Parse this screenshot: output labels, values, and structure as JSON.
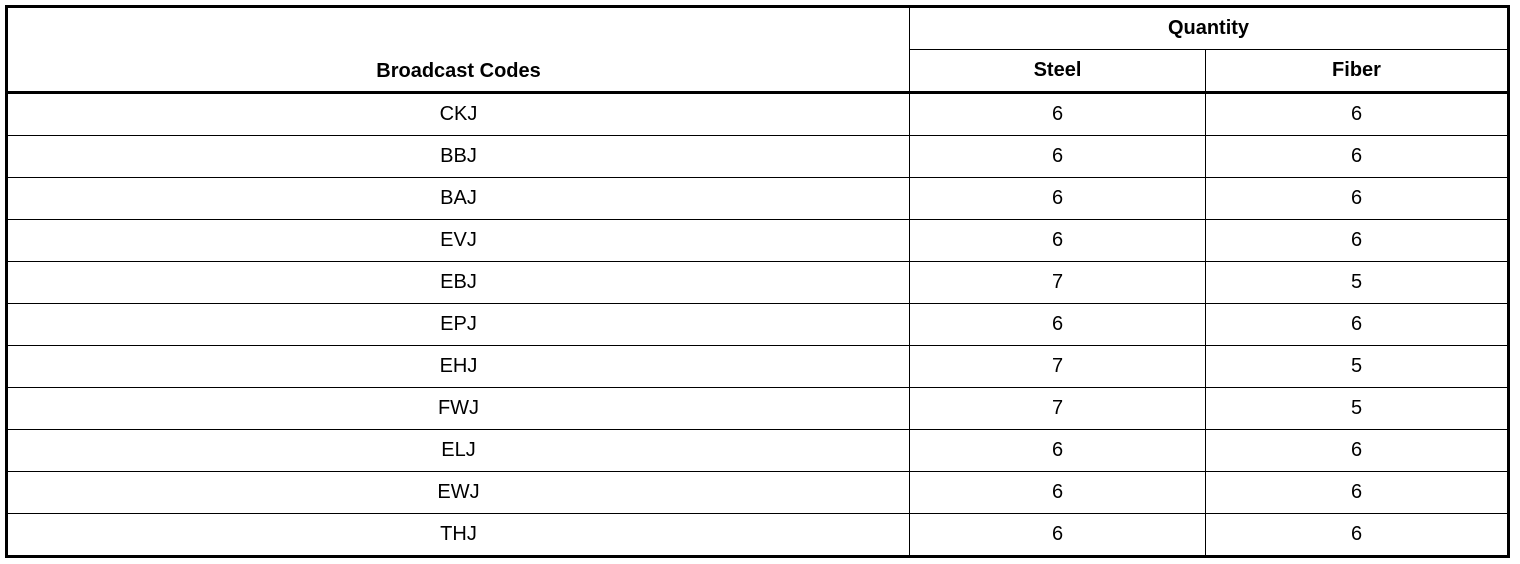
{
  "table": {
    "headers": {
      "codes": "Broadcast Codes",
      "quantity": "Quantity",
      "steel": "Steel",
      "fiber": "Fiber"
    },
    "rows": [
      {
        "code": "CKJ",
        "steel": "6",
        "fiber": "6"
      },
      {
        "code": "BBJ",
        "steel": "6",
        "fiber": "6"
      },
      {
        "code": "BAJ",
        "steel": "6",
        "fiber": "6"
      },
      {
        "code": "EVJ",
        "steel": "6",
        "fiber": "6"
      },
      {
        "code": "EBJ",
        "steel": "7",
        "fiber": "5"
      },
      {
        "code": "EPJ",
        "steel": "6",
        "fiber": "6"
      },
      {
        "code": "EHJ",
        "steel": "7",
        "fiber": "5"
      },
      {
        "code": "FWJ",
        "steel": "7",
        "fiber": "5"
      },
      {
        "code": "ELJ",
        "steel": "6",
        "fiber": "6"
      },
      {
        "code": "EWJ",
        "steel": "6",
        "fiber": "6"
      },
      {
        "code": "THJ",
        "steel": "6",
        "fiber": "6"
      }
    ]
  }
}
